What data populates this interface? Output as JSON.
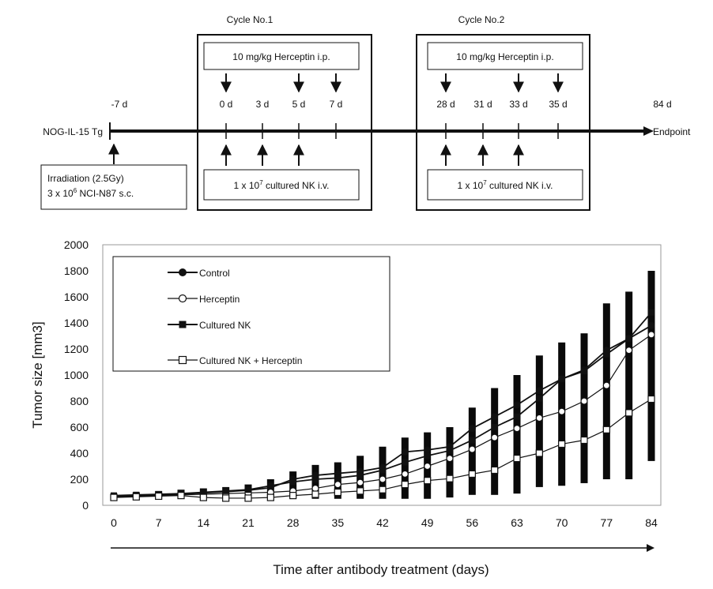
{
  "schedule": {
    "cycle1": {
      "title": "Cycle No.1",
      "herceptin_label": "10 mg/kg Herceptin i.p.",
      "nk_label": {
        "prefix": "1 x 10",
        "exp": "7",
        "suffix": " cultured NK i.v."
      }
    },
    "cycle2": {
      "title": "Cycle No.2",
      "herceptin_label": "10 mg/kg Herceptin i.p.",
      "nk_label": {
        "prefix": "1 x 10",
        "exp": "7",
        "suffix": " cultured NK i.v."
      }
    },
    "mouse_model": "NOG-IL-15 Tg",
    "endpoint_label": "Endpoint",
    "day_labels": [
      {
        "day": -7,
        "text": "-7 d"
      },
      {
        "day": 0,
        "text": "0 d"
      },
      {
        "day": 3,
        "text": "3 d"
      },
      {
        "day": 5,
        "text": "5 d"
      },
      {
        "day": 7,
        "text": "7 d"
      },
      {
        "day": 28,
        "text": "28 d"
      },
      {
        "day": 31,
        "text": "31 d"
      },
      {
        "day": 33,
        "text": "33 d"
      },
      {
        "day": 35,
        "text": "35 d"
      },
      {
        "day": 84,
        "text": "84 d"
      }
    ],
    "herceptin_days": [
      0,
      5,
      7,
      28,
      33,
      35
    ],
    "nk_days": [
      0,
      3,
      5,
      28,
      31,
      33
    ],
    "irradiation": {
      "line1": "Irradiation (2.5Gy)",
      "line2": {
        "prefix": "3 x 10",
        "exp": "6",
        "suffix": " NCI-N87 s.c."
      }
    }
  },
  "chart_data": {
    "type": "line",
    "ylabel": "Tumor size [mm3]",
    "xlabel": "Time after antibody treatment (days)",
    "xlim": [
      -2,
      87
    ],
    "ylim": [
      0,
      2000
    ],
    "x_ticks": [
      0,
      7,
      14,
      21,
      28,
      35,
      42,
      49,
      56,
      63,
      70,
      77,
      84
    ],
    "y_ticks": [
      0,
      200,
      400,
      600,
      800,
      1000,
      1200,
      1400,
      1600,
      1800,
      2000
    ],
    "x": [
      0,
      3.5,
      7,
      10.5,
      14,
      17.5,
      21,
      24.5,
      28,
      31.5,
      35,
      38.5,
      42,
      45.5,
      49,
      52.5,
      56,
      59.5,
      63,
      66.5,
      70,
      73.5,
      77,
      80.5,
      84
    ],
    "error_bars": {
      "center": [
        70,
        80,
        85,
        90,
        100,
        110,
        120,
        140,
        160,
        190,
        210,
        240,
        290,
        350,
        390,
        420,
        500,
        560,
        630,
        740,
        800,
        850,
        940,
        1010,
        1100
      ],
      "low": [
        50,
        60,
        60,
        60,
        60,
        60,
        60,
        60,
        60,
        50,
        50,
        50,
        50,
        50,
        50,
        60,
        80,
        80,
        90,
        140,
        150,
        170,
        200,
        200,
        340
      ],
      "high": [
        90,
        100,
        110,
        120,
        130,
        140,
        160,
        200,
        260,
        310,
        330,
        380,
        450,
        520,
        560,
        600,
        750,
        900,
        1000,
        1150,
        1250,
        1320,
        1550,
        1640,
        1800
      ]
    },
    "series": [
      {
        "name": "Control",
        "marker": "filled-circle",
        "values": [
          70,
          75,
          80,
          85,
          95,
          105,
          115,
          135,
          200,
          230,
          245,
          260,
          290,
          410,
          425,
          450,
          590,
          680,
          770,
          880,
          970,
          1040,
          1190,
          1280,
          1380
        ]
      },
      {
        "name": "Herceptin",
        "marker": "open-circle",
        "values": [
          65,
          70,
          75,
          80,
          85,
          90,
          95,
          100,
          110,
          130,
          160,
          175,
          200,
          240,
          300,
          360,
          430,
          520,
          590,
          670,
          720,
          800,
          920,
          1190,
          1310
        ]
      },
      {
        "name": "Cultured NK",
        "marker": "filled-square",
        "values": [
          75,
          80,
          85,
          90,
          100,
          110,
          120,
          150,
          180,
          200,
          210,
          230,
          270,
          330,
          380,
          420,
          500,
          600,
          680,
          820,
          970,
          1030,
          1160,
          1280,
          1480
        ]
      },
      {
        "name": "Cultured NK + Herceptin",
        "marker": "open-square",
        "values": [
          60,
          65,
          70,
          75,
          60,
          55,
          55,
          60,
          75,
          85,
          100,
          110,
          120,
          160,
          190,
          205,
          240,
          270,
          360,
          400,
          470,
          500,
          580,
          710,
          815
        ]
      }
    ]
  }
}
